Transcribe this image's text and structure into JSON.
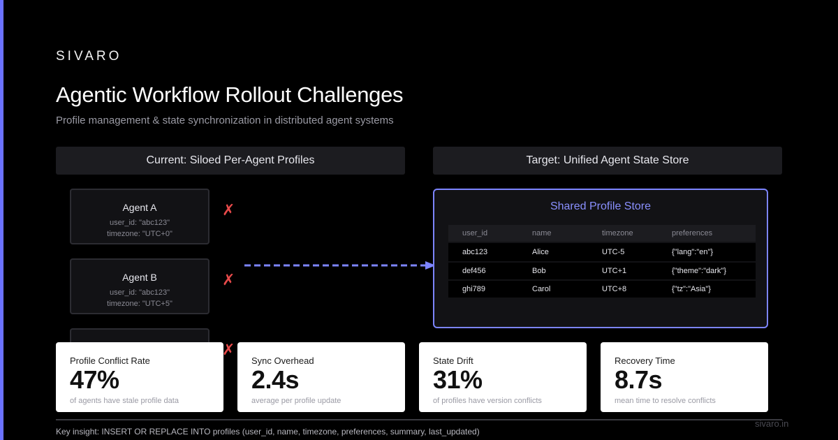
{
  "brand": "SIVARO",
  "title": "Agentic Workflow Rollout Challenges",
  "subtitle": "Profile management & state synchronization in distributed agent systems",
  "panels": {
    "left_header": "Current: Siloed Per-Agent Profiles",
    "right_header": "Target: Unified Agent State Store"
  },
  "agents": [
    {
      "name": "Agent A",
      "user_id": "user_id: \"abc123\"",
      "timezone": "timezone: \"UTC+0\"",
      "status_icon": "✗"
    },
    {
      "name": "Agent B",
      "user_id": "user_id: \"abc123\"",
      "timezone": "timezone: \"UTC+5\"",
      "status_icon": "✗"
    },
    {
      "name": "",
      "user_id": "",
      "timezone": "",
      "status_icon": "✗"
    }
  ],
  "store": {
    "title": "Shared Profile Store",
    "columns": [
      "user_id",
      "name",
      "timezone",
      "preferences"
    ],
    "rows": [
      [
        "abc123",
        "Alice",
        "UTC-5",
        "{\"lang\":\"en\"}"
      ],
      [
        "def456",
        "Bob",
        "UTC+1",
        "{\"theme\":\"dark\"}"
      ],
      [
        "ghi789",
        "Carol",
        "UTC+8",
        "{\"tz\":\"Asia\"}"
      ]
    ]
  },
  "metrics": [
    {
      "label": "Profile Conflict Rate",
      "value": "47%",
      "desc": "of agents have stale profile data"
    },
    {
      "label": "Sync Overhead",
      "value": "2.4s",
      "desc": "average per profile update"
    },
    {
      "label": "State Drift",
      "value": "31%",
      "desc": "of profiles have version conflicts"
    },
    {
      "label": "Recovery Time",
      "value": "8.7s",
      "desc": "mean time to resolve conflicts"
    }
  ],
  "insight": "Key insight: INSERT OR REPLACE INTO profiles (user_id, name, timezone, preferences, summary, last_updated)",
  "footer_url": "sivaro.in",
  "colors": {
    "accent": "#6b72ff",
    "store_border": "#7c84ff",
    "error": "#e84a4a",
    "background": "#000000"
  }
}
